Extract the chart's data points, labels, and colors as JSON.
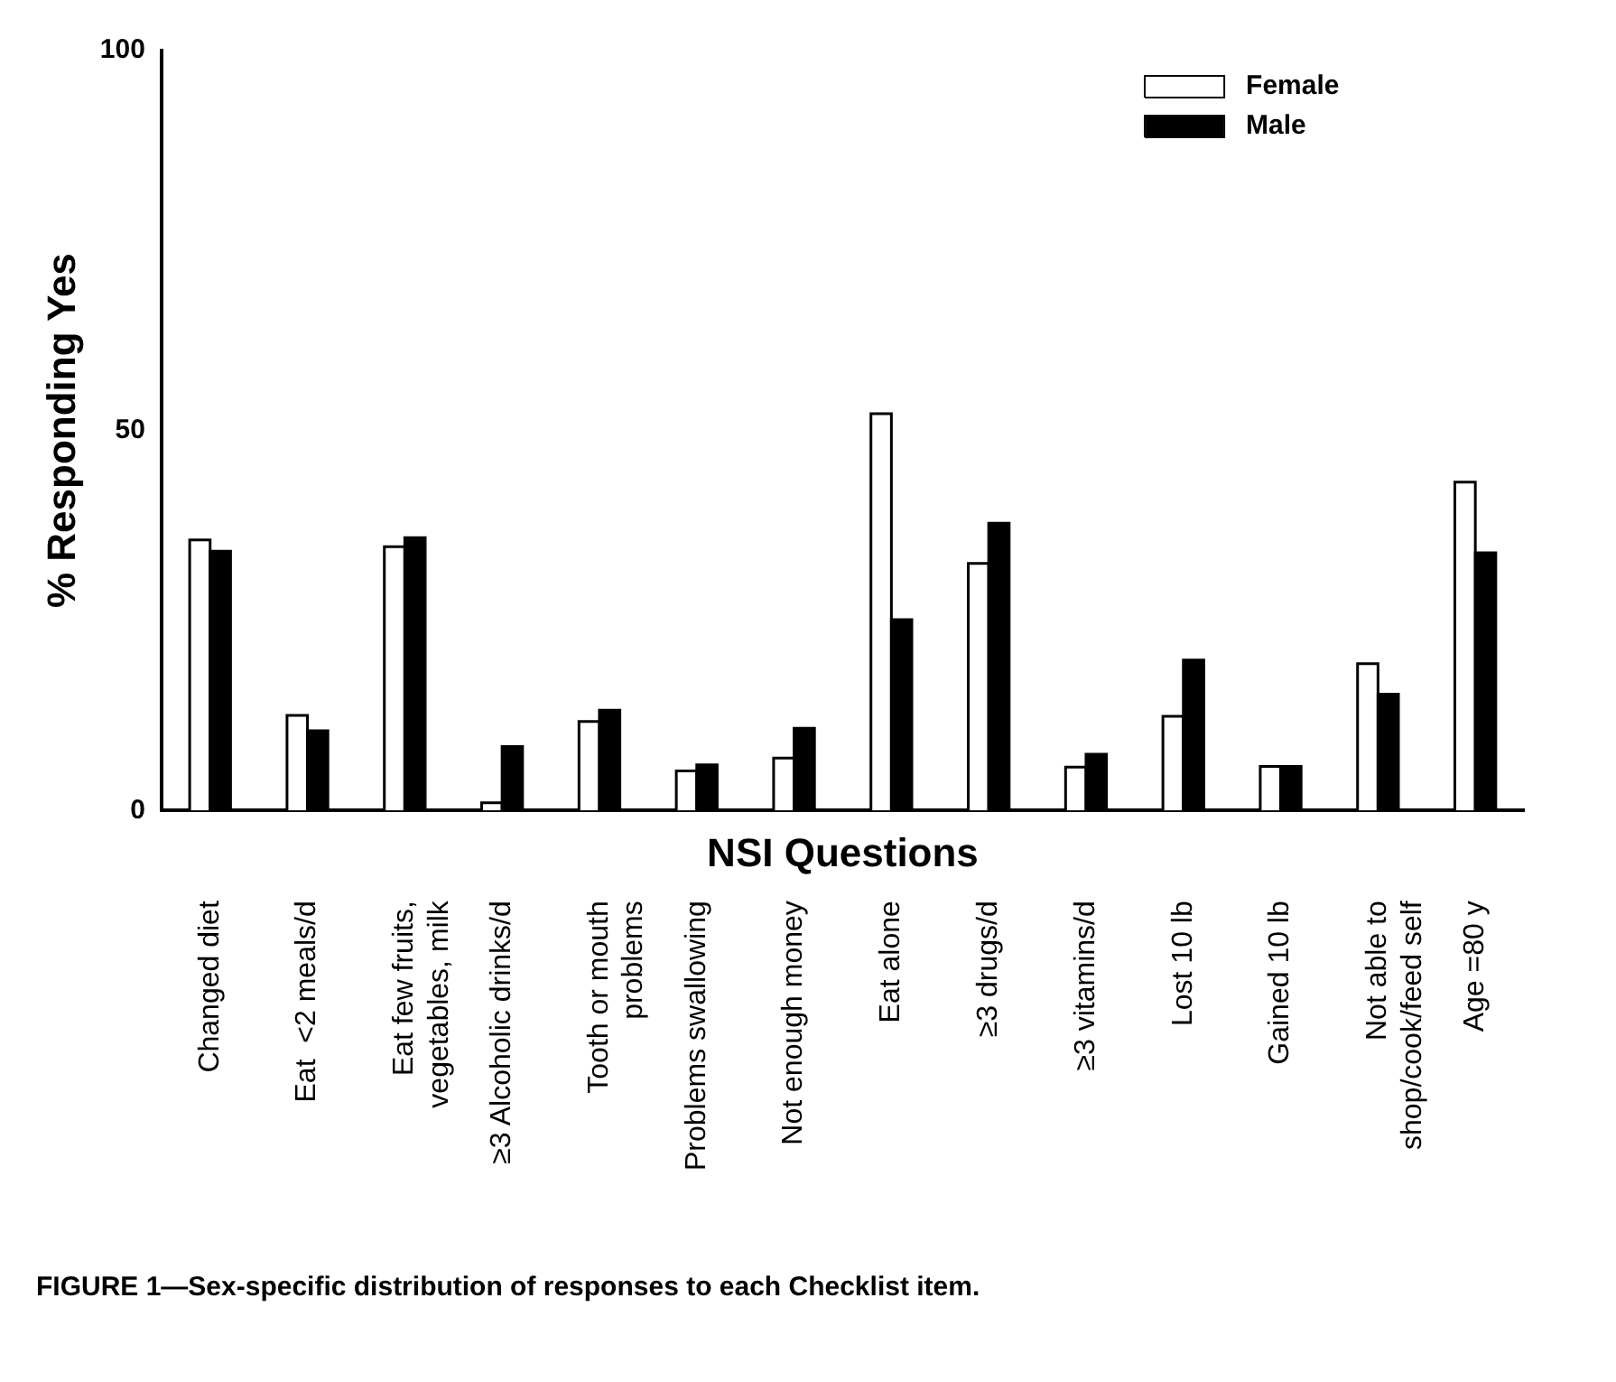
{
  "chart_data": {
    "type": "bar",
    "xlabel": "NSI Questions",
    "ylabel": "% Responding Yes",
    "categories": [
      "Changed diet",
      "Eat  <2 meals/d",
      "Eat few fruits,\nvegetables, milk",
      "≥3 Alcoholic drinks/d",
      "Tooth or mouth\nproblems",
      "Problems swallowing",
      "Not enough money",
      "Eat alone",
      "≥3 drugs/d",
      "≥3 vitamins/d",
      "Lost 10 lb",
      "Gained 10 lb",
      "Not able to\nshop/cook/feed self",
      "Age =80 y"
    ],
    "series": [
      {
        "name": "Female",
        "color": "#ffffff",
        "values": [
          35.6,
          12.5,
          34.7,
          1.0,
          11.7,
          5.2,
          6.9,
          52.2,
          32.5,
          5.7,
          12.4,
          5.8,
          19.3,
          43.2
        ]
      },
      {
        "name": "Male",
        "color": "#000000",
        "values": [
          34.1,
          10.5,
          35.9,
          8.4,
          13.2,
          6.0,
          10.8,
          25.1,
          37.8,
          7.4,
          19.8,
          5.8,
          15.3,
          33.9
        ]
      }
    ],
    "ylim": [
      0,
      100
    ],
    "yticks": [
      0,
      50,
      100
    ],
    "grid": false,
    "legend": "top right",
    "annotations": [
      "FIGURE 1—Sex-specific distribution of responses to each Checklist item."
    ]
  }
}
